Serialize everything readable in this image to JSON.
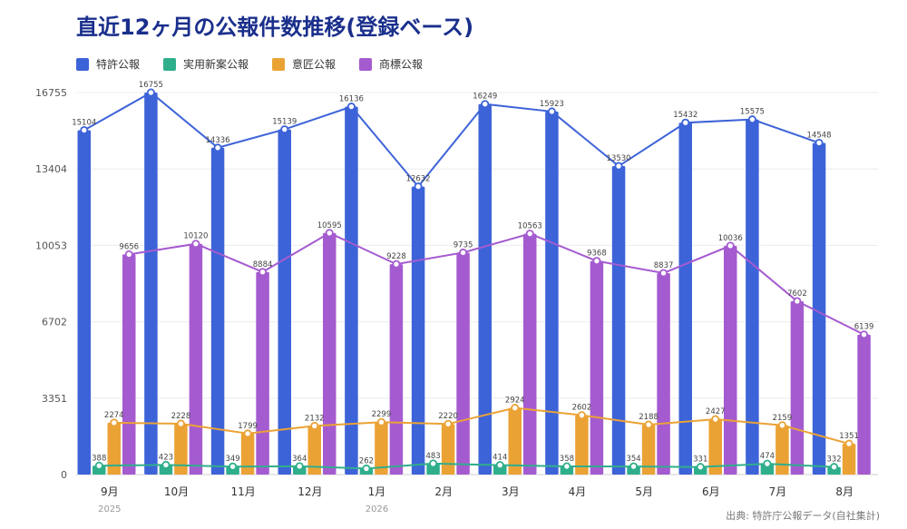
{
  "title": "直近12ヶ月の公報件数推移(登録ベース)",
  "source": "出典: 特許庁公報データ(自社集計)",
  "colors": {
    "patent": "#3d63d8",
    "utility": "#2fae8c",
    "design": "#eba235",
    "trademark": "#a55bd0"
  },
  "chart_data": {
    "type": "bar",
    "categories": [
      "9月",
      "10月",
      "11月",
      "12月",
      "1月",
      "2月",
      "3月",
      "4月",
      "5月",
      "6月",
      "7月",
      "8月"
    ],
    "year_labels": [
      {
        "index": 0,
        "text": "2025"
      },
      {
        "index": 4,
        "text": "2026"
      }
    ],
    "yticks": [
      0,
      3351,
      6702,
      10053,
      13404,
      16755
    ],
    "ylim": [
      0,
      16755
    ],
    "grid": true,
    "legend_position": "top-left",
    "overlay": "line markers on each bar series",
    "series": [
      {
        "name": "特許公報",
        "key": "patent",
        "values": [
          15104,
          16755,
          14336,
          15139,
          16136,
          12632,
          16249,
          15923,
          13530,
          15432,
          15575,
          14548
        ]
      },
      {
        "name": "実用新案公報",
        "key": "utility",
        "values": [
          388,
          423,
          349,
          364,
          262,
          483,
          414,
          358,
          354,
          331,
          474,
          332
        ]
      },
      {
        "name": "意匠公報",
        "key": "design",
        "values": [
          2274,
          2228,
          1799,
          2132,
          2299,
          2220,
          2924,
          2602,
          2188,
          2427,
          2159,
          1351
        ]
      },
      {
        "name": "商標公報",
        "key": "trademark",
        "values": [
          9656,
          10120,
          8884,
          10595,
          9228,
          9735,
          10563,
          9368,
          8837,
          10036,
          7602,
          6139
        ]
      }
    ]
  }
}
